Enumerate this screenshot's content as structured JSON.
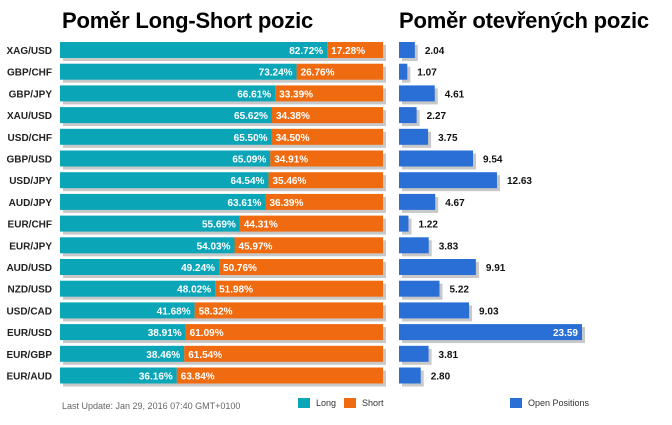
{
  "titles": {
    "ratio": "Poměr Long-Short pozic",
    "positions": "Poměr otevřených pozic"
  },
  "footer": {
    "last_update": "Last Update: Jan 29, 2016 07:40 GMT+0100"
  },
  "legend": {
    "long": "Long",
    "short": "Short",
    "open_positions": "Open Positions"
  },
  "colors": {
    "long": "#0aa6b8",
    "short": "#f06a10",
    "open_positions": "#2a6fd6",
    "shadow": "#c8c8c8"
  },
  "chart_data": [
    {
      "type": "bar",
      "orientation": "horizontal",
      "stacked": true,
      "title": "Poměr Long-Short pozic",
      "categories": [
        "XAG/USD",
        "GBP/CHF",
        "GBP/JPY",
        "XAU/USD",
        "USD/CHF",
        "GBP/USD",
        "USD/JPY",
        "AUD/JPY",
        "EUR/CHF",
        "EUR/JPY",
        "AUD/USD",
        "NZD/USD",
        "USD/CAD",
        "EUR/USD",
        "EUR/GBP",
        "EUR/AUD"
      ],
      "series": [
        {
          "name": "Long",
          "values": [
            82.72,
            73.24,
            66.61,
            65.62,
            65.5,
            65.09,
            64.54,
            63.61,
            55.69,
            54.03,
            49.24,
            48.02,
            41.68,
            38.91,
            38.46,
            36.16
          ]
        },
        {
          "name": "Short",
          "values": [
            17.28,
            26.76,
            33.39,
            34.38,
            34.5,
            34.91,
            35.46,
            36.39,
            44.31,
            45.97,
            50.76,
            51.98,
            58.32,
            61.09,
            61.54,
            63.84
          ]
        }
      ],
      "unit": "%",
      "xlim": [
        0,
        100
      ]
    },
    {
      "type": "bar",
      "orientation": "horizontal",
      "title": "Poměr otevřených pozic",
      "categories": [
        "XAG/USD",
        "GBP/CHF",
        "GBP/JPY",
        "XAU/USD",
        "USD/CHF",
        "GBP/USD",
        "USD/JPY",
        "AUD/JPY",
        "EUR/CHF",
        "EUR/JPY",
        "AUD/USD",
        "NZD/USD",
        "USD/CAD",
        "EUR/USD",
        "EUR/GBP",
        "EUR/AUD"
      ],
      "series": [
        {
          "name": "Open Positions",
          "values": [
            2.04,
            1.07,
            4.61,
            2.27,
            3.75,
            9.54,
            12.63,
            4.67,
            1.22,
            3.83,
            9.91,
            5.22,
            9.03,
            23.59,
            3.81,
            2.8
          ]
        }
      ],
      "xlim": [
        0,
        23.59
      ]
    }
  ]
}
